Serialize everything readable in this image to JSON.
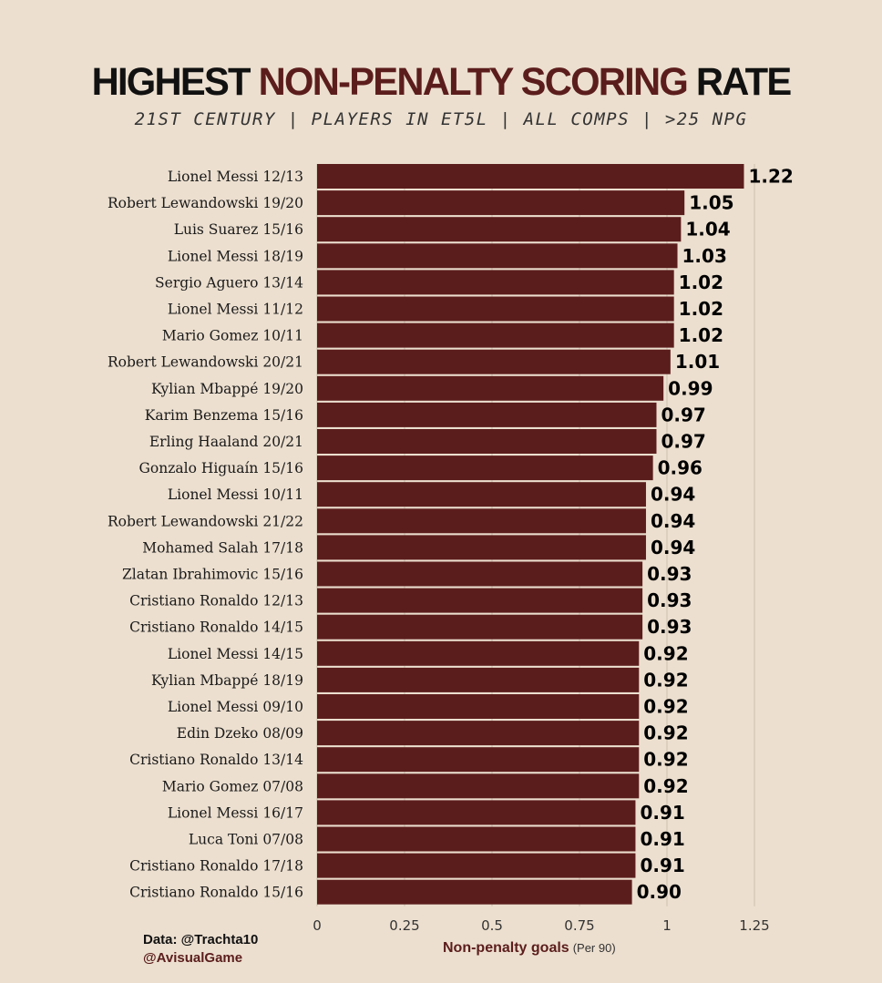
{
  "colors": {
    "bar": "#5b1d1c",
    "background": "#ecdfcf",
    "accent": "#5b1d1c",
    "grid": "#cdbfae"
  },
  "chart_data": {
    "type": "bar",
    "orientation": "horizontal",
    "title_parts": [
      "HIGHEST ",
      "NON-PENALTY SCORING",
      " RATE"
    ],
    "subtitle": "21ST CENTURY  |  PLAYERS IN ET5L  |  ALL COMPS  |  >25 NPG",
    "categories": [
      "Lionel Messi 12/13",
      "Robert Lewandowski 19/20",
      "Luis Suarez 15/16",
      "Lionel Messi 18/19",
      "Sergio Aguero 13/14",
      "Lionel Messi 11/12",
      "Mario Gomez 10/11",
      "Robert Lewandowski 20/21",
      "Kylian Mbappé 19/20",
      "Karim Benzema 15/16",
      "Erling Haaland 20/21",
      "Gonzalo Higuaín 15/16",
      "Lionel Messi 10/11",
      "Robert Lewandowski 21/22",
      "Mohamed Salah 17/18",
      "Zlatan Ibrahimovic 15/16",
      "Cristiano Ronaldo 12/13",
      "Cristiano Ronaldo 14/15",
      "Lionel Messi 14/15",
      "Kylian Mbappé 18/19",
      "Lionel Messi 09/10",
      "Edin Dzeko 08/09",
      "Cristiano Ronaldo 13/14",
      "Mario Gomez 07/08",
      "Lionel Messi 16/17",
      "Luca Toni 07/08",
      "Cristiano Ronaldo 17/18",
      "Cristiano Ronaldo 15/16"
    ],
    "values": [
      1.22,
      1.05,
      1.04,
      1.03,
      1.02,
      1.02,
      1.02,
      1.01,
      0.99,
      0.97,
      0.97,
      0.96,
      0.94,
      0.94,
      0.94,
      0.93,
      0.93,
      0.93,
      0.92,
      0.92,
      0.92,
      0.92,
      0.92,
      0.92,
      0.91,
      0.91,
      0.91,
      0.9
    ],
    "value_labels": [
      "1.22",
      "1.05",
      "1.04",
      "1.03",
      "1.02",
      "1.02",
      "1.02",
      "1.01",
      "0.99",
      "0.97",
      "0.97",
      "0.96",
      "0.94",
      "0.94",
      "0.94",
      "0.93",
      "0.93",
      "0.93",
      "0.92",
      "0.92",
      "0.92",
      "0.92",
      "0.92",
      "0.92",
      "0.91",
      "0.91",
      "0.91",
      "0.90"
    ],
    "xlim": [
      0,
      1.25
    ],
    "xticks": [
      0,
      0.25,
      0.5,
      0.75,
      1,
      1.25
    ],
    "xtick_labels": [
      "0",
      "0.25",
      "0.5",
      "0.75",
      "1",
      "1.25"
    ],
    "xlabel": "Non-penalty goals",
    "xlabel_unit": "(Per 90)",
    "grid": true
  },
  "credits": {
    "data_source": "Data: @Trachta10",
    "author": "@AvisualGame"
  }
}
